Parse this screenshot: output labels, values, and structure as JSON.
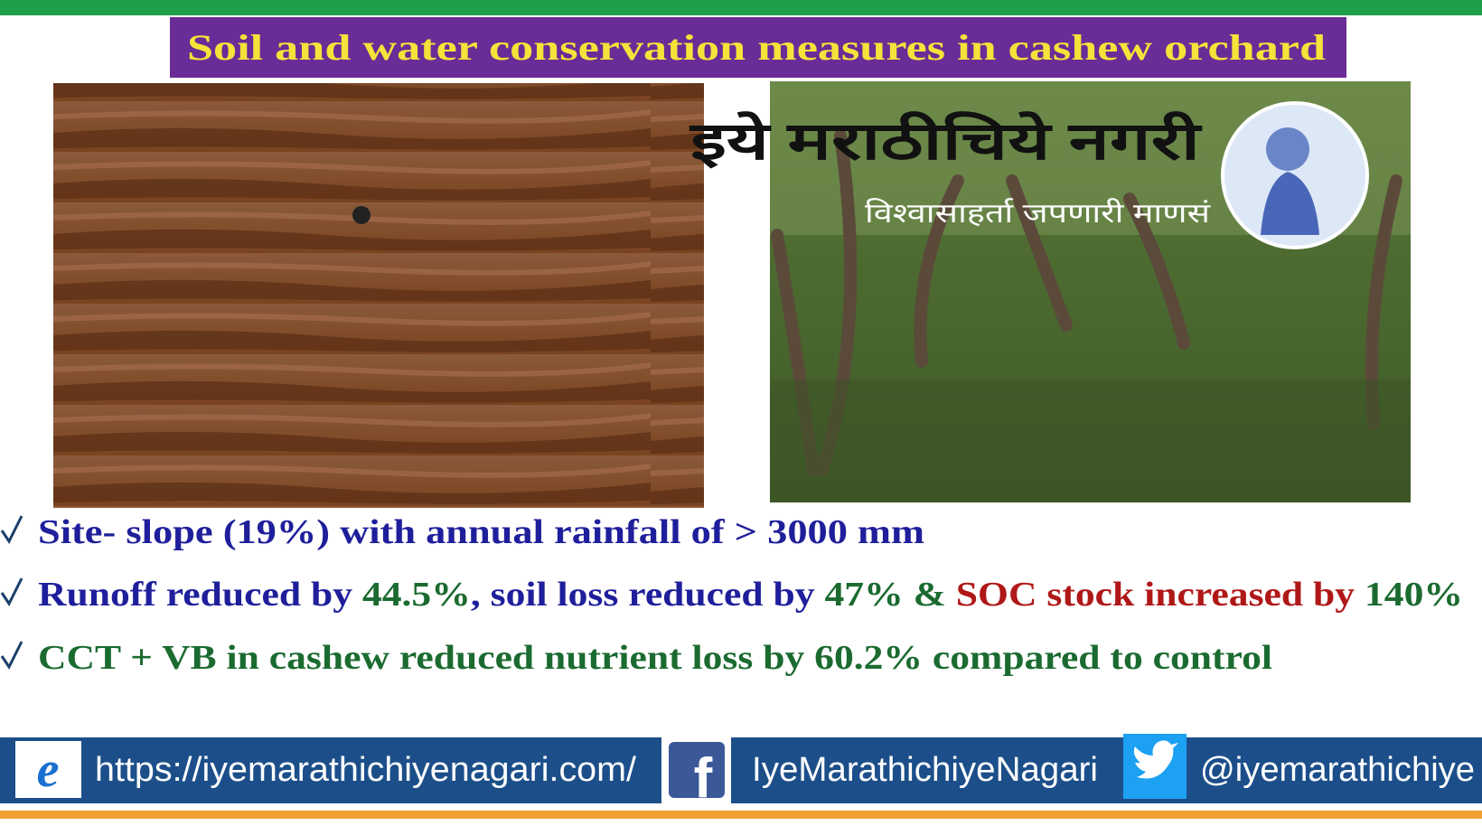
{
  "header": {
    "title": "Soil and water conservation measures in cashew orchard"
  },
  "watermark": {
    "name": "इये मराठीचिये नगरी",
    "tagline": "विश्वासाहर्ता जपणारी माणसं"
  },
  "bullets": [
    {
      "segments": [
        {
          "text": "Site- slope (19%) with annual rainfall of > 3000 mm",
          "color": "#1f1f9c"
        }
      ]
    },
    {
      "segments": [
        {
          "text": "Runoff reduced by ",
          "color": "#1f1f9c"
        },
        {
          "text": "44.5%",
          "color": "#1b6b30"
        },
        {
          "text": ", soil loss reduced by ",
          "color": "#1f1f9c"
        },
        {
          "text": "47%",
          "color": "#1b6b30"
        },
        {
          "text": " & ",
          "color": "#1b6b30"
        },
        {
          "text": "SOC stock increased by ",
          "color": "#b01818"
        },
        {
          "text": "140%",
          "color": "#1b6b30"
        }
      ]
    },
    {
      "segments": [
        {
          "text": "CCT + VB in cashew reduced nutrient loss by 60.2% compared to control",
          "color": "#1b6b30"
        }
      ]
    }
  ],
  "footer": {
    "website": "https://iyemarathichiyenagari.com/",
    "facebook": "IyeMarathichiyeNagari",
    "twitter": "@iyemarathichiye"
  }
}
